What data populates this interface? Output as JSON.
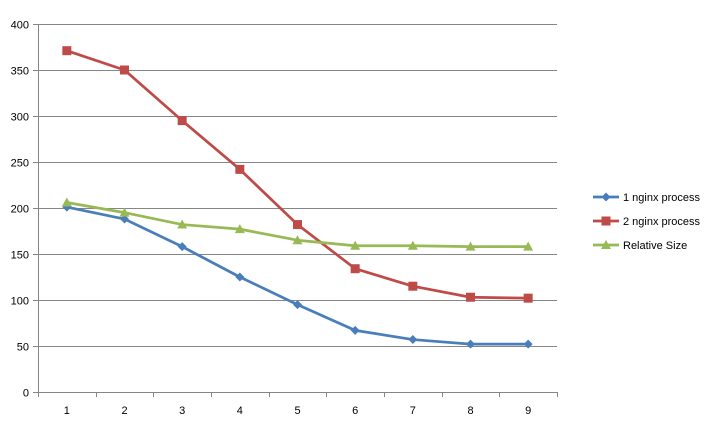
{
  "chart_data": {
    "type": "line",
    "title": "",
    "xlabel": "",
    "ylabel": "",
    "x": [
      1,
      2,
      3,
      4,
      5,
      6,
      7,
      8,
      9
    ],
    "ylim": [
      0,
      400
    ],
    "yticks": [
      0,
      50,
      100,
      150,
      200,
      250,
      300,
      350,
      400
    ],
    "grid": "horizontal",
    "legend_position": "right",
    "series": [
      {
        "name": "1 nginx process",
        "color": "#4a7ebb",
        "marker": "diamond",
        "values": [
          201,
          188,
          158,
          125,
          95,
          67,
          57,
          52,
          52
        ]
      },
      {
        "name": "2 nginx process",
        "color": "#be4b48",
        "marker": "square",
        "values": [
          371,
          350,
          295,
          242,
          182,
          134,
          115,
          103,
          102
        ]
      },
      {
        "name": "Relative Size",
        "color": "#98b954",
        "marker": "triangle",
        "values": [
          206,
          195,
          182,
          177,
          165,
          159,
          159,
          158,
          158
        ]
      }
    ]
  }
}
